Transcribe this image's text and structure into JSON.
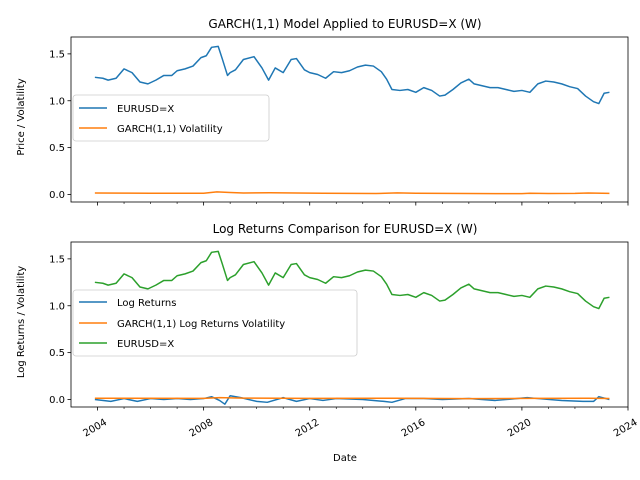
{
  "chart_data": [
    {
      "type": "line",
      "title": "GARCH(1,1) Model Applied to EURUSD=X (W)",
      "xlabel": "",
      "ylabel": "Price / Volatility",
      "xlim": [
        2003.0,
        2024.0
      ],
      "ylim": [
        -0.08,
        1.68
      ],
      "yticks": [
        "0.0",
        "0.5",
        "1.0",
        "1.5"
      ],
      "yticks_values": [
        0.0,
        0.5,
        1.0,
        1.5
      ],
      "legend_position": "center-left",
      "series": [
        {
          "name": "EURUSD=X",
          "color": "#1f77b4",
          "x": [
            2003.9,
            2004.2,
            2004.4,
            2004.7,
            2005.0,
            2005.3,
            2005.6,
            2005.9,
            2006.2,
            2006.5,
            2006.8,
            2007.0,
            2007.3,
            2007.6,
            2007.9,
            2008.1,
            2008.3,
            2008.55,
            2008.7,
            2008.9,
            2009.0,
            2009.2,
            2009.5,
            2009.9,
            2010.2,
            2010.45,
            2010.7,
            2011.0,
            2011.3,
            2011.5,
            2011.8,
            2012.0,
            2012.3,
            2012.6,
            2012.9,
            2013.2,
            2013.5,
            2013.8,
            2014.1,
            2014.4,
            2014.7,
            2014.9,
            2015.1,
            2015.4,
            2015.7,
            2016.0,
            2016.3,
            2016.6,
            2016.9,
            2017.1,
            2017.4,
            2017.7,
            2018.0,
            2018.2,
            2018.5,
            2018.8,
            2019.1,
            2019.4,
            2019.7,
            2020.0,
            2020.3,
            2020.6,
            2020.9,
            2021.2,
            2021.5,
            2021.8,
            2022.1,
            2022.4,
            2022.7,
            2022.9,
            2023.1,
            2023.3
          ],
          "values": [
            1.25,
            1.24,
            1.22,
            1.24,
            1.34,
            1.3,
            1.2,
            1.18,
            1.22,
            1.27,
            1.27,
            1.32,
            1.34,
            1.37,
            1.46,
            1.48,
            1.57,
            1.58,
            1.45,
            1.27,
            1.3,
            1.33,
            1.44,
            1.47,
            1.35,
            1.22,
            1.35,
            1.3,
            1.44,
            1.45,
            1.33,
            1.3,
            1.28,
            1.24,
            1.31,
            1.3,
            1.32,
            1.36,
            1.38,
            1.37,
            1.31,
            1.23,
            1.12,
            1.11,
            1.12,
            1.09,
            1.14,
            1.11,
            1.05,
            1.06,
            1.12,
            1.19,
            1.23,
            1.18,
            1.16,
            1.14,
            1.14,
            1.12,
            1.1,
            1.11,
            1.09,
            1.18,
            1.21,
            1.2,
            1.18,
            1.15,
            1.13,
            1.05,
            0.99,
            0.97,
            1.08,
            1.09
          ]
        },
        {
          "name": "GARCH(1,1) Volatility",
          "color": "#ff7f0e",
          "x": [
            2003.9,
            2005.0,
            2006.0,
            2007.0,
            2008.0,
            2008.5,
            2009.0,
            2009.5,
            2010.5,
            2011.5,
            2012.5,
            2013.5,
            2014.5,
            2015.3,
            2016.0,
            2017.0,
            2018.0,
            2019.0,
            2020.0,
            2020.3,
            2021.0,
            2022.0,
            2022.5,
            2023.3
          ],
          "values": [
            0.016,
            0.015,
            0.014,
            0.013,
            0.013,
            0.028,
            0.022,
            0.016,
            0.018,
            0.016,
            0.013,
            0.012,
            0.01,
            0.017,
            0.014,
            0.012,
            0.011,
            0.009,
            0.009,
            0.014,
            0.011,
            0.012,
            0.016,
            0.012
          ]
        }
      ]
    },
    {
      "type": "line",
      "title": "Log Returns Comparison for EURUSD=X (W)",
      "xlabel": "Date",
      "ylabel": "Log Returns / Volatility",
      "xlim": [
        2003.0,
        2024.0
      ],
      "ylim": [
        -0.08,
        1.68
      ],
      "yticks": [
        "0.0",
        "0.5",
        "1.0",
        "1.5"
      ],
      "yticks_values": [
        0.0,
        0.5,
        1.0,
        1.5
      ],
      "xticks": [
        "2004",
        "2008",
        "2012",
        "2016",
        "2020",
        "2024"
      ],
      "xticks_values": [
        2004,
        2008,
        2012,
        2016,
        2020,
        2024
      ],
      "legend_position": "center-left",
      "series": [
        {
          "name": "Log Returns",
          "color": "#1f77b4",
          "x": [
            2003.9,
            2004.5,
            2005.0,
            2005.5,
            2006.0,
            2006.5,
            2007.0,
            2007.5,
            2008.0,
            2008.3,
            2008.6,
            2008.8,
            2009.0,
            2009.4,
            2010.0,
            2010.4,
            2011.0,
            2011.5,
            2012.0,
            2012.5,
            2013.0,
            2014.0,
            2014.8,
            2015.1,
            2015.6,
            2016.3,
            2017.0,
            2018.0,
            2019.0,
            2020.2,
            2020.6,
            2021.5,
            2022.3,
            2022.7,
            2022.9,
            2023.3
          ],
          "values": [
            0.0,
            -0.02,
            0.01,
            -0.02,
            0.01,
            0.0,
            0.01,
            0.0,
            0.01,
            0.03,
            -0.01,
            -0.05,
            0.04,
            0.02,
            -0.02,
            -0.03,
            0.02,
            -0.02,
            0.01,
            -0.01,
            0.01,
            0.0,
            -0.02,
            -0.03,
            0.01,
            0.01,
            0.0,
            0.01,
            -0.01,
            0.02,
            0.01,
            -0.01,
            -0.02,
            -0.02,
            0.03,
            0.0
          ]
        },
        {
          "name": "GARCH(1,1) Log Returns Volatility",
          "color": "#ff7f0e",
          "x": [
            2003.9,
            2008.0,
            2008.6,
            2009.5,
            2012.0,
            2015.2,
            2018.0,
            2020.3,
            2022.5,
            2023.3
          ],
          "values": [
            0.014,
            0.012,
            0.02,
            0.015,
            0.012,
            0.014,
            0.009,
            0.012,
            0.014,
            0.011
          ]
        },
        {
          "name": "EURUSD=X",
          "color": "#2ca02c",
          "x": [
            2003.9,
            2004.2,
            2004.4,
            2004.7,
            2005.0,
            2005.3,
            2005.6,
            2005.9,
            2006.2,
            2006.5,
            2006.8,
            2007.0,
            2007.3,
            2007.6,
            2007.9,
            2008.1,
            2008.3,
            2008.55,
            2008.7,
            2008.9,
            2009.0,
            2009.2,
            2009.5,
            2009.9,
            2010.2,
            2010.45,
            2010.7,
            2011.0,
            2011.3,
            2011.5,
            2011.8,
            2012.0,
            2012.3,
            2012.6,
            2012.9,
            2013.2,
            2013.5,
            2013.8,
            2014.1,
            2014.4,
            2014.7,
            2014.9,
            2015.1,
            2015.4,
            2015.7,
            2016.0,
            2016.3,
            2016.6,
            2016.9,
            2017.1,
            2017.4,
            2017.7,
            2018.0,
            2018.2,
            2018.5,
            2018.8,
            2019.1,
            2019.4,
            2019.7,
            2020.0,
            2020.3,
            2020.6,
            2020.9,
            2021.2,
            2021.5,
            2021.8,
            2022.1,
            2022.4,
            2022.7,
            2022.9,
            2023.1,
            2023.3
          ],
          "values": [
            1.25,
            1.24,
            1.22,
            1.24,
            1.34,
            1.3,
            1.2,
            1.18,
            1.22,
            1.27,
            1.27,
            1.32,
            1.34,
            1.37,
            1.46,
            1.48,
            1.57,
            1.58,
            1.45,
            1.27,
            1.3,
            1.33,
            1.44,
            1.47,
            1.35,
            1.22,
            1.35,
            1.3,
            1.44,
            1.45,
            1.33,
            1.3,
            1.28,
            1.24,
            1.31,
            1.3,
            1.32,
            1.36,
            1.38,
            1.37,
            1.31,
            1.23,
            1.12,
            1.11,
            1.12,
            1.09,
            1.14,
            1.11,
            1.05,
            1.06,
            1.12,
            1.19,
            1.23,
            1.18,
            1.16,
            1.14,
            1.14,
            1.12,
            1.1,
            1.11,
            1.09,
            1.18,
            1.21,
            1.2,
            1.18,
            1.15,
            1.13,
            1.05,
            0.99,
            0.97,
            1.08,
            1.09
          ]
        }
      ]
    }
  ]
}
